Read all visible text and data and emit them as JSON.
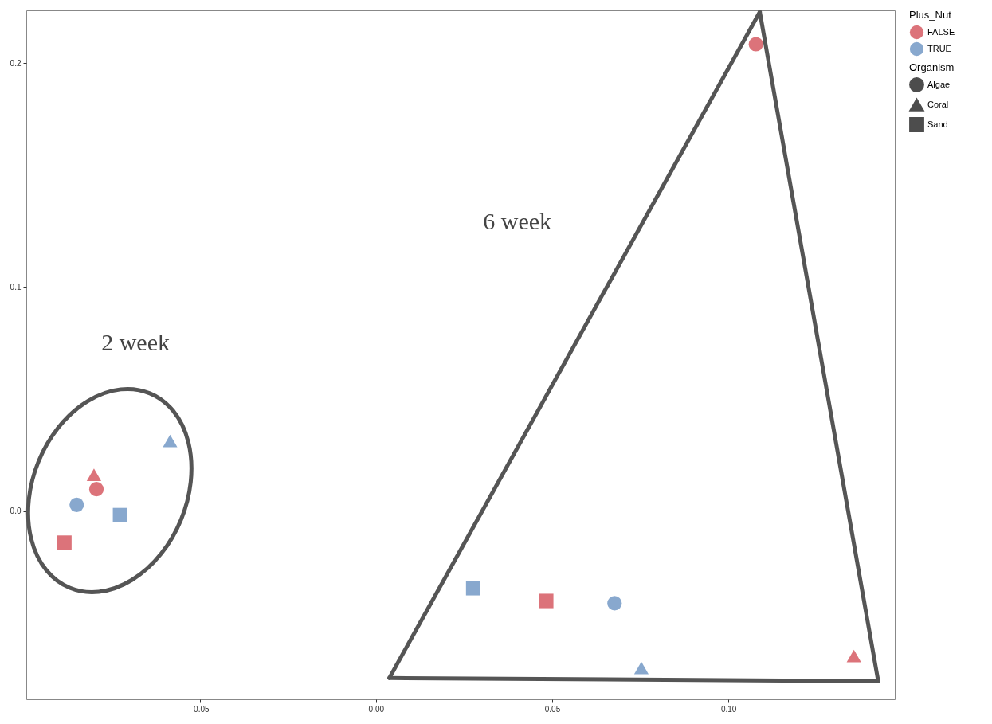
{
  "chart_data": {
    "type": "scatter",
    "legend_title": [
      "Plus_Nut",
      "Organism"
    ],
    "legend": "right",
    "grid": false,
    "xlim": [
      -0.0992,
      0.1472
    ],
    "ylim": [
      -0.084,
      0.2235
    ],
    "xticks": [
      {
        "value": -0.05,
        "label": "-0.05"
      },
      {
        "value": 0,
        "label": "0.00"
      },
      {
        "value": 0.05,
        "label": "0.05"
      },
      {
        "value": 0.1,
        "label": "0.10"
      }
    ],
    "yticks": [
      {
        "value": 0,
        "label": "0.0"
      },
      {
        "value": 0.1,
        "label": "0.1"
      },
      {
        "value": 0.2,
        "label": "0.2"
      }
    ],
    "series": [
      {
        "name": "FALSE",
        "color": "#d65a63",
        "x": [
          0.1078,
          0.1356,
          0.0483,
          -0.08,
          -0.0793,
          -0.0884
        ],
        "values": [
          0.2084,
          -0.0647,
          -0.0401,
          0.0162,
          0.0098,
          -0.0141
        ],
        "marker": [
          "circle",
          "triangle",
          "square",
          "triangle",
          "circle",
          "square"
        ]
      },
      {
        "name": "TRUE",
        "color": "#7399c6",
        "x": [
          0.0753,
          0.0677,
          0.0276,
          -0.0584,
          -0.0849,
          -0.0726
        ],
        "values": [
          -0.07,
          -0.0411,
          -0.0344,
          0.0313,
          0.0028,
          -0.0018
        ],
        "marker": [
          "triangle",
          "circle",
          "square",
          "triangle",
          "circle",
          "square"
        ]
      },
      {
        "name": "Algae",
        "color": "#4d4d4d",
        "marker": "circle"
      },
      {
        "name": "Coral",
        "color": "#4d4d4d",
        "marker": "triangle"
      },
      {
        "name": "Sand",
        "color": "#4d4d4d",
        "marker": "square"
      },
      {
        "type": "line",
        "color": "#555555",
        "x": [
          0.0038,
          0.1089
        ],
        "values": [
          -0.0745,
          0.2228
        ]
      },
      {
        "type": "line",
        "color": "#555555",
        "x": [
          0.0038,
          0.1425
        ],
        "values": [
          -0.0745,
          -0.0759
        ]
      },
      {
        "type": "line",
        "color": "#555555",
        "x": [
          0.1089,
          0.1425
        ],
        "values": [
          0.2228,
          -0.0759
        ]
      }
    ],
    "annotations": [
      "2 week",
      "6 week"
    ]
  }
}
